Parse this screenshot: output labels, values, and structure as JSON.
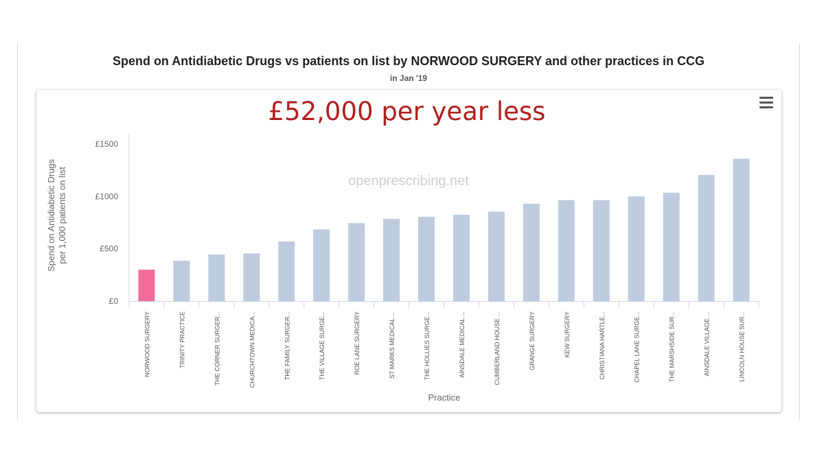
{
  "slide": {
    "callout": "£52,000 per year less",
    "watermark": "openprescribing.net"
  },
  "chart_data": {
    "type": "bar",
    "title": "Spend on Antidiabetic Drugs vs patients on list by NORWOOD SURGERY and other practices in CCG",
    "subtitle": "in Jan '19",
    "xlabel": "Practice",
    "ylabel_lines": [
      "Spend on Antidiabetic Drugs",
      "per 1,000 patients on list"
    ],
    "ylim": [
      0,
      1600
    ],
    "yticks": [
      0,
      500,
      1000,
      1500
    ],
    "ytick_labels": [
      "£0",
      "£500",
      "£1000",
      "£1500"
    ],
    "grid": false,
    "highlight_color": "#f06d9b",
    "bar_color": "#bfcbde",
    "categories": [
      "NORWOOD SURGERY",
      "TRINITY PRACTICE",
      "THE CORNER SURGER...",
      "CHURCHTOWN MEDICA...",
      "THE FAMILY SURGER...",
      "THE VILLAGE SURGE...",
      "ROE LANE SURGERY",
      "ST MARKS MEDICAL ...",
      "THE HOLLIES SURGE...",
      "AINSDALE MEDICAL ...",
      "CUMBERLAND HOUSE ...",
      "GRANGE SURGERY",
      "KEW SURGERY",
      "CHRISTIANA HARTLE...",
      "CHAPEL LANE SURGE...",
      "THE MARSHSIDE SUR...",
      "AINSDALE VILLAGE ...",
      "LINCOLN HOUSE SUR..."
    ],
    "values": [
      300,
      385,
      445,
      455,
      570,
      685,
      745,
      785,
      805,
      825,
      855,
      930,
      965,
      965,
      1000,
      1035,
      1205,
      1360
    ],
    "highlight_index": 0
  }
}
